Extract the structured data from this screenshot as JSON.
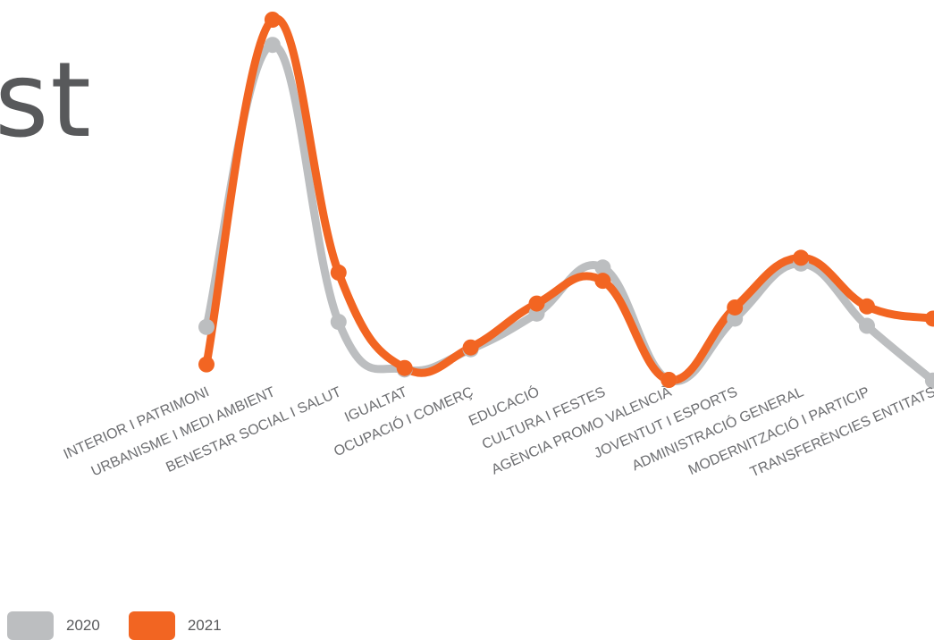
{
  "page": {
    "title_fragment": "st"
  },
  "colors": {
    "series_2020": "#bcbec0",
    "series_2021": "#f26522",
    "label": "#6d6e71"
  },
  "chart_data": {
    "type": "line",
    "title": "",
    "xlabel": "",
    "ylabel": "",
    "categories": [
      "INTERIOR I PATRIMONI",
      "URBANISME I MEDI AMBIENT",
      "BENESTAR SOCIAL I SALUT",
      "IGUALTAT",
      "OCUPACIÓ I COMERÇ",
      "EDUCACIÓ",
      "CULTURA I FESTES",
      "AGÈNCIA PROMO VALENCIÀ",
      "JOVENTUT I ESPORTS",
      "ADMINISTRACIÓ GENERAL",
      "MODERNITZACIÓ I PARTICIP",
      "TRANSFERÈNCIES ENTITATS"
    ],
    "series": [
      {
        "name": "2020",
        "values": [
          14.7,
          93.0,
          16.1,
          2.9,
          8.5,
          18.4,
          31.2,
          0.0,
          17.0,
          32.3,
          15.0,
          -0.2
        ]
      },
      {
        "name": "2021",
        "values": [
          4.3,
          100.0,
          29.8,
          3.3,
          9.0,
          21.2,
          27.5,
          0.0,
          20.1,
          33.9,
          20.4,
          17.0
        ]
      }
    ],
    "ylim": [
      0,
      100
    ],
    "grid": false,
    "legend": "bottom-left"
  }
}
